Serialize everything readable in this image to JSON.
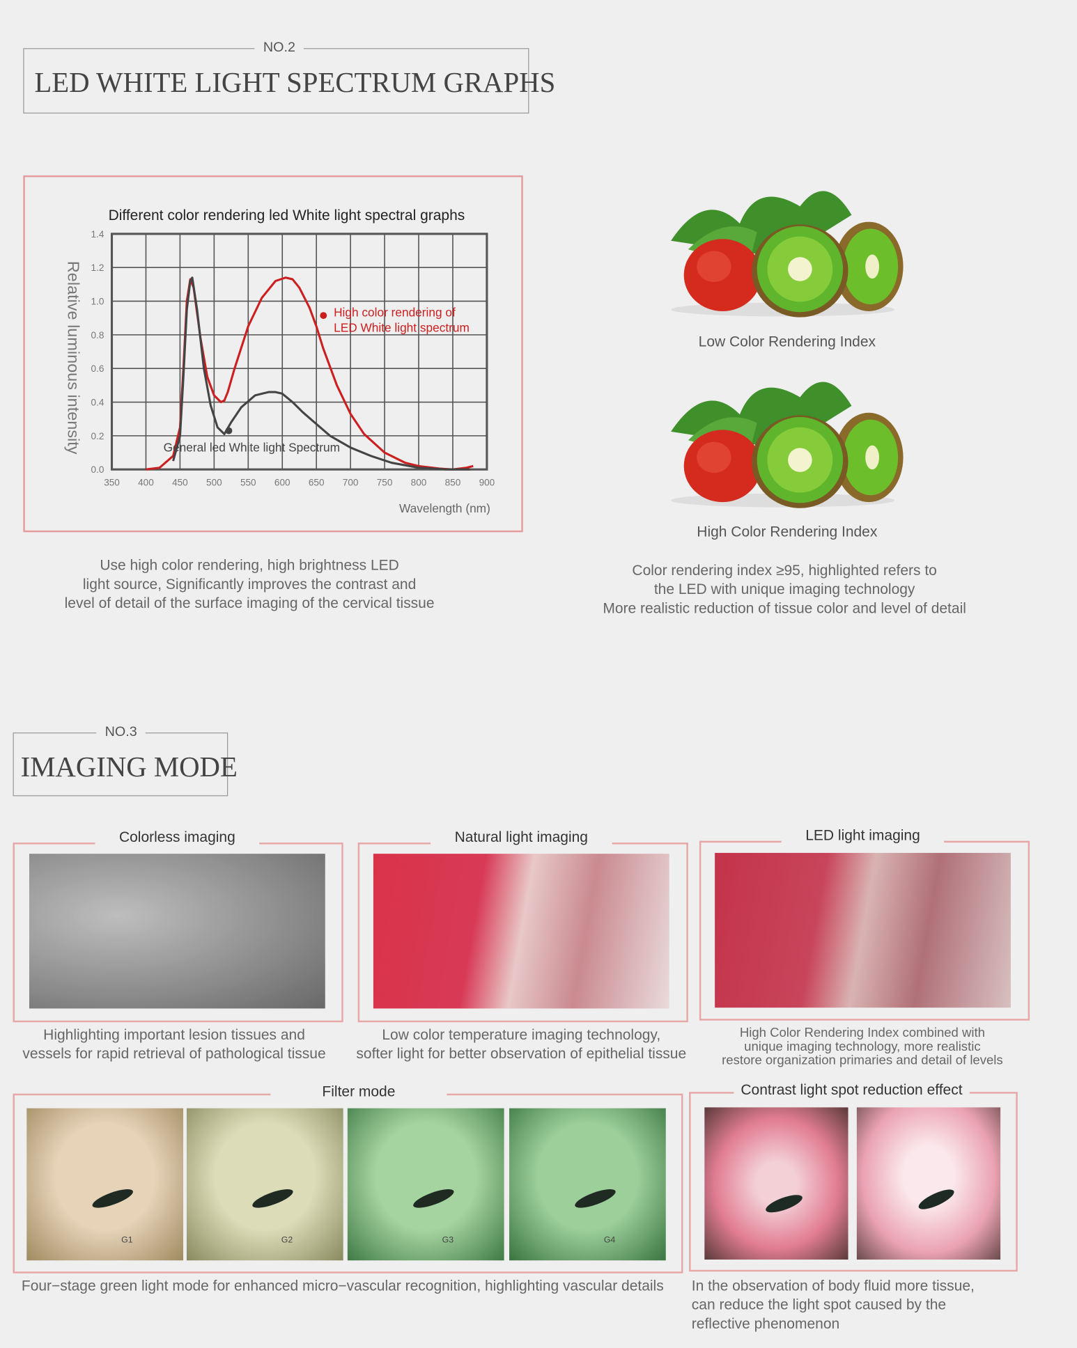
{
  "section2": {
    "number": "NO.2",
    "title": "LED WHITE LIGHT SPECTRUM GRAPHS"
  },
  "chart_data": {
    "type": "line",
    "title": "Different color rendering led White light spectral graphs",
    "xlabel": "Wavelength (nm)",
    "ylabel": "Relative luminous intensity",
    "xlim": [
      350,
      900
    ],
    "ylim": [
      0,
      1.4
    ],
    "xticks": [
      "350",
      "400",
      "450",
      "500",
      "550",
      "600",
      "650",
      "700",
      "750",
      "800",
      "850",
      "900"
    ],
    "yticks": [
      "0.0",
      "0.2",
      "0.4",
      "0.6",
      "0.8",
      "1.0",
      "1.2",
      "1.4"
    ],
    "grid": true,
    "series": [
      {
        "name": "High color rendering of LED White light spectrum",
        "color": "#cc1f1f",
        "x": [
          400,
          420,
          440,
          450,
          455,
          460,
          465,
          470,
          480,
          490,
          500,
          510,
          515,
          520,
          530,
          550,
          570,
          590,
          605,
          615,
          625,
          640,
          650,
          660,
          680,
          700,
          720,
          750,
          780,
          800,
          830,
          850,
          870,
          880
        ],
        "y": [
          0,
          0.01,
          0.08,
          0.25,
          0.6,
          1.0,
          1.13,
          1.08,
          0.78,
          0.55,
          0.44,
          0.4,
          0.41,
          0.46,
          0.6,
          0.85,
          1.02,
          1.12,
          1.14,
          1.13,
          1.08,
          0.96,
          0.85,
          0.72,
          0.5,
          0.33,
          0.21,
          0.1,
          0.04,
          0.02,
          0.005,
          0.0,
          0.01,
          0.02
        ]
      },
      {
        "name": "General led White light Spectrum",
        "color": "#444444",
        "x": [
          440,
          450,
          455,
          460,
          465,
          468,
          475,
          485,
          495,
          505,
          515,
          525,
          540,
          560,
          580,
          590,
          600,
          615,
          630,
          650,
          670,
          700,
          730,
          760,
          800,
          840,
          875
        ],
        "y": [
          0.05,
          0.2,
          0.55,
          0.95,
          1.12,
          1.14,
          0.95,
          0.6,
          0.38,
          0.25,
          0.21,
          0.28,
          0.37,
          0.44,
          0.46,
          0.46,
          0.45,
          0.4,
          0.34,
          0.27,
          0.2,
          0.13,
          0.08,
          0.04,
          0.01,
          0.0,
          0.0
        ]
      }
    ],
    "annotations": [
      "High color rendering of",
      "LED White light spectrum",
      "General led White light Spectrum"
    ]
  },
  "section2_caption": [
    "Use high color rendering, high brightness LED",
    "light source, Significantly improves the contrast and",
    "level of detail of the surface imaging of the cervical tissue"
  ],
  "fruit": {
    "low_label": "Low Color Rendering Index",
    "high_label": "High Color Rendering Index"
  },
  "fruit_caption": [
    "Color rendering index ≥95, highlighted refers to",
    "the LED with unique imaging technology",
    "More realistic reduction of tissue color and level of detail"
  ],
  "section3": {
    "number": "NO.3",
    "title": "IMAGING MODE"
  },
  "modes": [
    {
      "label": "Colorless imaging",
      "caption": [
        "Highlighting important lesion tissues and",
        "vessels for rapid retrieval of pathological tissue"
      ]
    },
    {
      "label": "Natural light imaging",
      "caption": [
        "Low color temperature imaging technology,",
        "softer light for better observation of epithelial tissue"
      ]
    },
    {
      "label": "LED light imaging",
      "caption": [
        "High Color Rendering Index combined with",
        "unique imaging technology, more realistic",
        "restore organization primaries and detail of levels"
      ]
    }
  ],
  "filter": {
    "label": "Filter mode",
    "stages": [
      "G1",
      "G2",
      "G3",
      "G4"
    ],
    "caption": "Four−stage green light mode for enhanced micro−vascular recognition, highlighting vascular details"
  },
  "contrast": {
    "label": "Contrast light spot reduction effect",
    "caption": [
      "In the observation of body fluid more tissue,",
      "can reduce the light spot caused by the",
      "reflective phenomenon"
    ]
  },
  "colors": {
    "accent_border": "#e8a7a7",
    "red_curve": "#cc1f1f",
    "gray_curve": "#444444"
  }
}
